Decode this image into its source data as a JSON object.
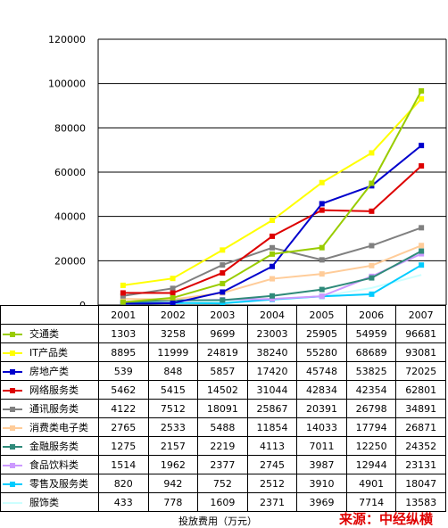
{
  "chart_data": {
    "type": "line",
    "x": [
      "2001",
      "2002",
      "2003",
      "2004",
      "2005",
      "2006",
      "2007"
    ],
    "xlabel": "投放费用（万元）",
    "ylim": [
      0,
      120000
    ],
    "yticks": [
      "0",
      "20000",
      "40000",
      "60000",
      "80000",
      "100000",
      "120000"
    ],
    "grid": "horizontal",
    "legend": "table-below",
    "series": [
      {
        "name": "交通类",
        "color": "#99cc00",
        "marker": "square",
        "values": [
          1303,
          3258,
          9699,
          23003,
          25905,
          54959,
          96681
        ],
        "labels": [
          "1303",
          "3258",
          "9699",
          "23003",
          "25905",
          "54959",
          "96681"
        ]
      },
      {
        "name": "IT产品类",
        "color": "#ffff00",
        "marker": "square",
        "values": [
          8895,
          11999,
          24819,
          38240,
          55280,
          68689,
          93081
        ],
        "labels": [
          "8895",
          "11999",
          "24819",
          "38240",
          "55280",
          "68689",
          "93081"
        ]
      },
      {
        "name": "房地产类",
        "color": "#0000cc",
        "marker": "square",
        "values": [
          539,
          848,
          5857,
          17420,
          45748,
          53825,
          72025
        ],
        "labels": [
          "539",
          "848",
          "5857",
          "17420",
          "45748",
          "53825",
          "72025"
        ]
      },
      {
        "name": "网络服务类",
        "color": "#dd0000",
        "marker": "square",
        "values": [
          5462,
          5415,
          14502,
          31044,
          42834,
          42354,
          62801
        ],
        "labels": [
          "5462",
          "5415",
          "14502",
          "31044",
          "42834",
          "42354",
          "62801"
        ]
      },
      {
        "name": "通讯服务类",
        "color": "#808080",
        "marker": "square",
        "values": [
          4122,
          7512,
          18091,
          25867,
          20391,
          26798,
          34891
        ],
        "labels": [
          "4122",
          "7512",
          "18091",
          "25867",
          "20391",
          "26798",
          "34891"
        ]
      },
      {
        "name": "消费类电子类",
        "color": "#ffcc99",
        "marker": "square",
        "values": [
          2765,
          2533,
          5488,
          11854,
          14033,
          17794,
          26871
        ],
        "labels": [
          "2765",
          "2533",
          "5488",
          "11854",
          "14033",
          "17794",
          "26871"
        ]
      },
      {
        "name": "金融服务类",
        "color": "#2f8a7a",
        "marker": "square",
        "values": [
          1275,
          2157,
          2219,
          4113,
          7011,
          12250,
          24352
        ],
        "labels": [
          "1275",
          "2157",
          "2219",
          "4113",
          "7011",
          "12250",
          "24352"
        ]
      },
      {
        "name": "食品饮料类",
        "color": "#cc99ff",
        "marker": "square",
        "values": [
          1514,
          1962,
          2377,
          2745,
          3987,
          12944,
          23131
        ],
        "labels": [
          "1514",
          "1962",
          "2377",
          "2745",
          "3987",
          "12944",
          "23131"
        ]
      },
      {
        "name": "零售及服务类",
        "color": "#00ccff",
        "marker": "square",
        "values": [
          820,
          942,
          752,
          2512,
          3910,
          4901,
          18047
        ],
        "labels": [
          "820",
          "942",
          "752",
          "2512",
          "3910",
          "4901",
          "18047"
        ]
      },
      {
        "name": "服饰类",
        "color": "#ccffff",
        "marker": "none",
        "values": [
          433,
          778,
          1609,
          2371,
          3969,
          7714,
          13583
        ],
        "labels": [
          "433",
          "778",
          "1609",
          "2371",
          "3969",
          "7714",
          "13583"
        ]
      }
    ]
  },
  "source_note": "来源：中经纵横"
}
